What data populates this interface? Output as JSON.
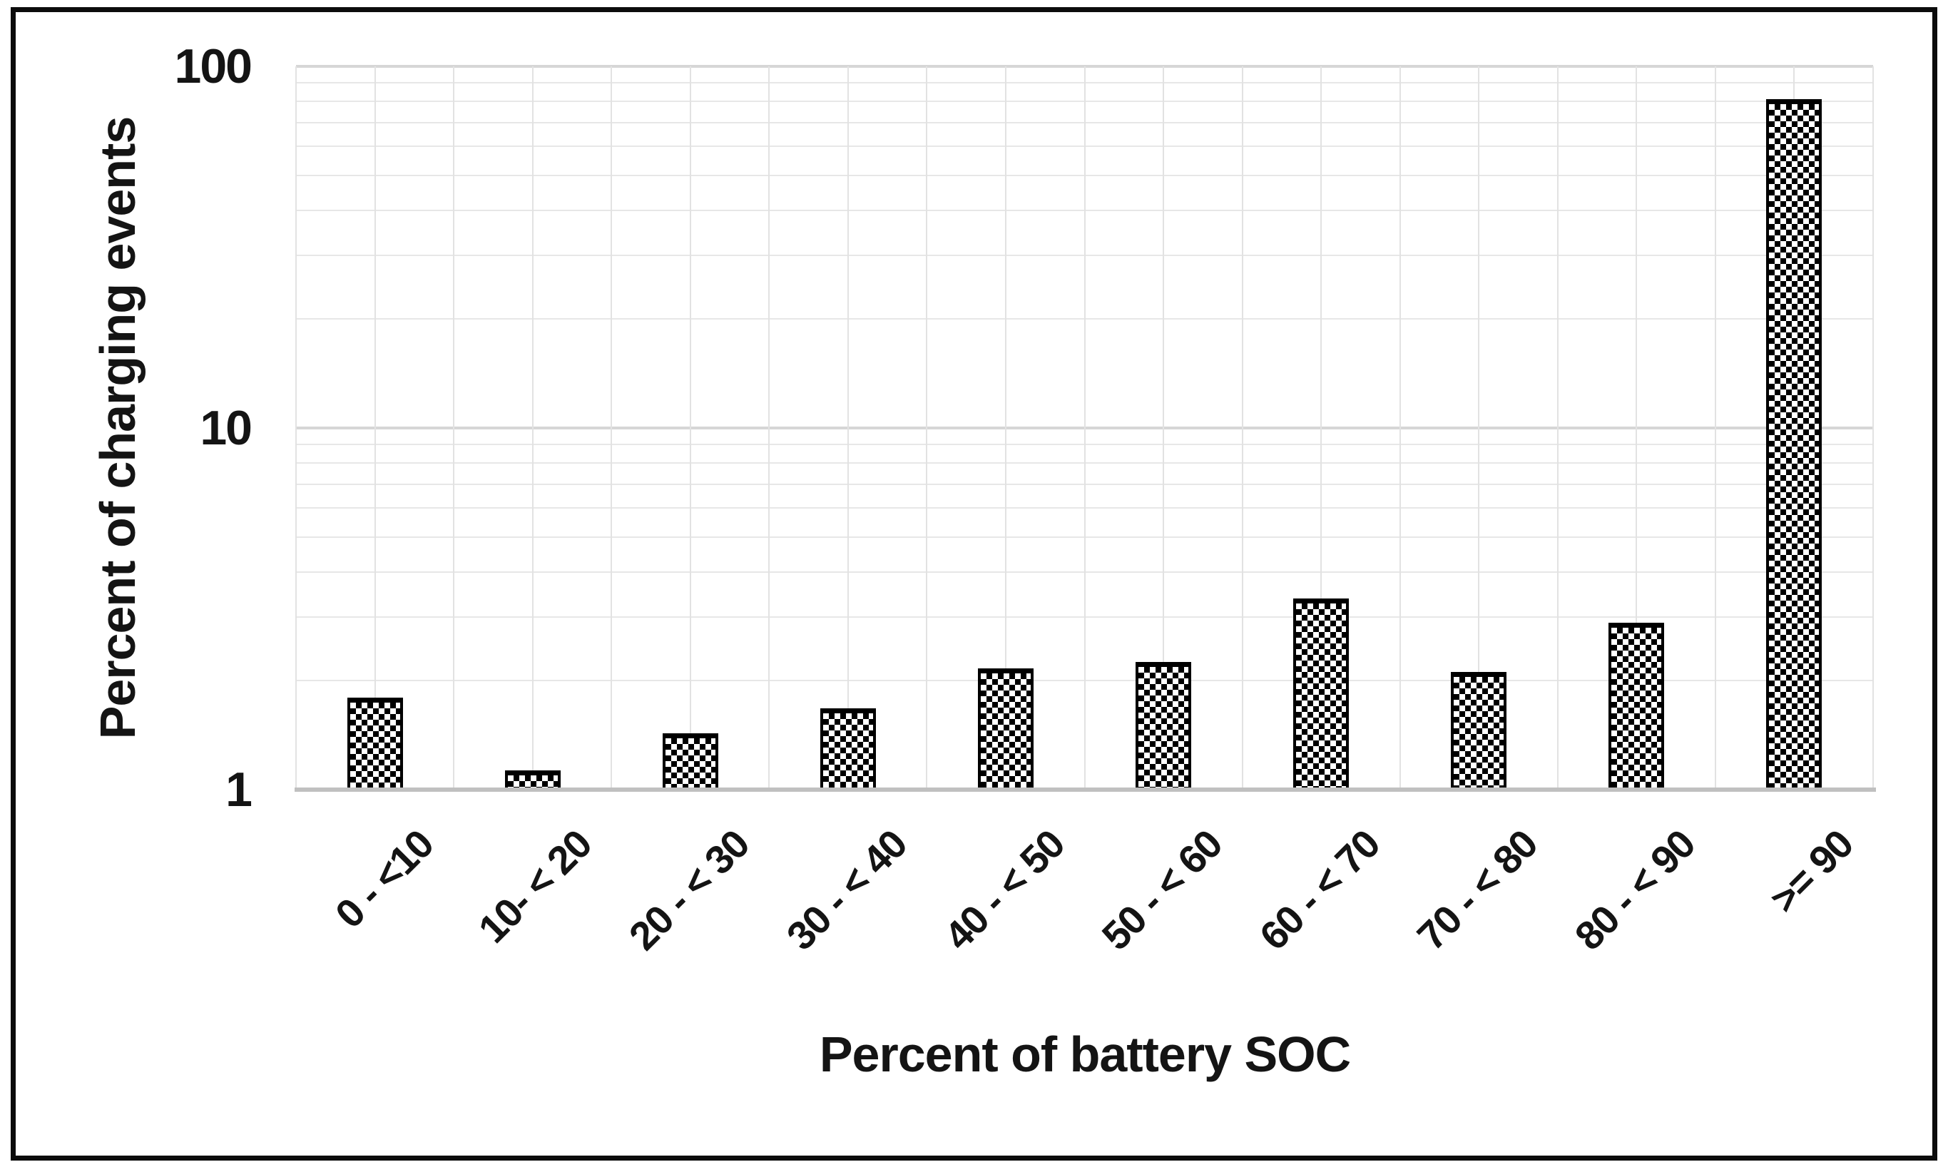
{
  "chart_data": {
    "type": "bar",
    "title": "",
    "xlabel": "Percent of battery SOC",
    "ylabel": "Percent of charging events",
    "yscale": "log",
    "ylim": [
      1,
      100
    ],
    "yticks": [
      1,
      10,
      100
    ],
    "ytick_labels": [
      "1",
      "10",
      "100"
    ],
    "categories": [
      "0 - <10",
      "10- < 20",
      "20 - < 30",
      "30 - < 40",
      "40 - < 50",
      "50 - < 60",
      "60 - < 70",
      "70 - < 80",
      "80 - < 90",
      ">= 90"
    ],
    "values": [
      1.8,
      1.13,
      1.43,
      1.68,
      2.16,
      2.25,
      3.38,
      2.12,
      2.9,
      81.2
    ],
    "minor_gridline_values": [
      2,
      3,
      4,
      5,
      6,
      7,
      8,
      9,
      20,
      30,
      40,
      50,
      60,
      70,
      80,
      90
    ],
    "major_gridline_values": [
      10,
      100
    ],
    "grid": true,
    "legend": false,
    "bar_style": "black-white checkerboard pattern with black outline",
    "colors": {
      "background": "#ffffff",
      "ink": "#141414",
      "bar_pattern_dark": "#000000",
      "bar_pattern_light": "#ffffff",
      "gridline_minor": "#e7e7e7",
      "gridline_major": "#d6d6d6",
      "axis_line": "#c0c0c0",
      "figure_border": "#0c0c0c"
    }
  }
}
